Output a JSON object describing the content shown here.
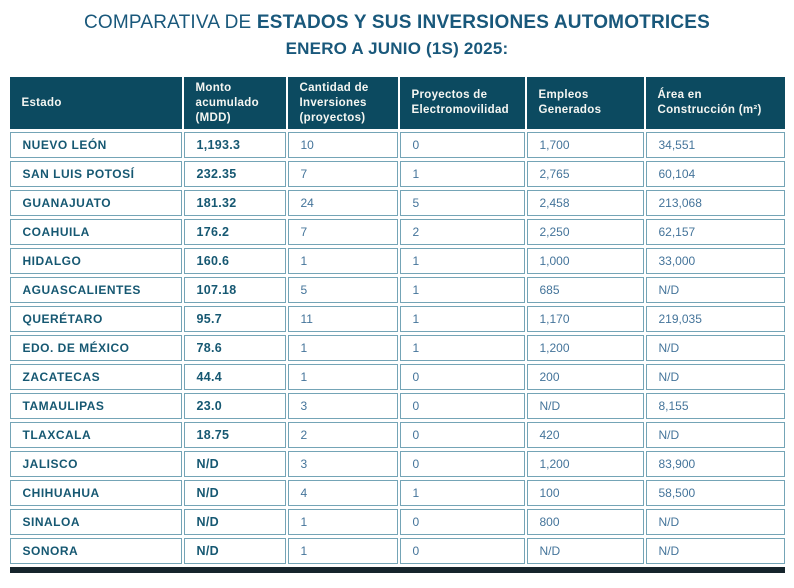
{
  "title": {
    "prefix": "COMPARATIVA DE ",
    "emphasis": "ESTADOS Y SUS INVERSIONES AUTOMOTRICES",
    "subtitle": "ENERO A JUNIO (1S) 2025:"
  },
  "colors": {
    "title_text": "#19587B",
    "header_bg": "#0C4A60",
    "header_text": "#F5F6F2",
    "row_label_text": "#165872",
    "value_text": "#44749A",
    "cell_border": "#74A4B6",
    "bottom_bar": "#15242C"
  },
  "chart_data": {
    "type": "table",
    "title": "COMPARATIVA DE ESTADOS Y SUS INVERSIONES AUTOMOTRICES ENERO A JUNIO (1S) 2025:",
    "columns": [
      "Estado",
      "Monto acumulado (MDD)",
      "Cantidad de Inversiones (proyectos)",
      "Proyectos de Electromovilidad",
      "Empleos Generados",
      "Área en Construcción (m²)"
    ],
    "rows": [
      [
        "NUEVO LEÓN",
        "1,193.3",
        "10",
        "0",
        "1,700",
        "34,551"
      ],
      [
        "SAN LUIS POTOSÍ",
        "232.35",
        "7",
        "1",
        "2,765",
        "60,104"
      ],
      [
        "GUANAJUATO",
        "181.32",
        "24",
        "5",
        "2,458",
        "213,068"
      ],
      [
        "COAHUILA",
        "176.2",
        "7",
        "2",
        "2,250",
        "62,157"
      ],
      [
        "HIDALGO",
        "160.6",
        "1",
        "1",
        "1,000",
        "33,000"
      ],
      [
        "AGUASCALIENTES",
        "107.18",
        "5",
        "1",
        "685",
        "N/D"
      ],
      [
        "QUERÉTARO",
        "95.7",
        "11",
        "1",
        "1,170",
        "219,035"
      ],
      [
        "EDO. DE MÉXICO",
        "78.6",
        "1",
        "1",
        "1,200",
        "N/D"
      ],
      [
        "ZACATECAS",
        "44.4",
        "1",
        "0",
        "200",
        "N/D"
      ],
      [
        "TAMAULIPAS",
        "23.0",
        "3",
        "0",
        "N/D",
        "8,155"
      ],
      [
        "TLAXCALA",
        "18.75",
        "2",
        "0",
        "420",
        "N/D"
      ],
      [
        "JALISCO",
        "N/D",
        "3",
        "0",
        "1,200",
        "83,900"
      ],
      [
        "CHIHUAHUA",
        "N/D",
        "4",
        "1",
        "100",
        "58,500"
      ],
      [
        "SINALOA",
        "N/D",
        "1",
        "0",
        "800",
        "N/D"
      ],
      [
        "SONORA",
        "N/D",
        "1",
        "0",
        "N/D",
        "N/D"
      ]
    ]
  }
}
